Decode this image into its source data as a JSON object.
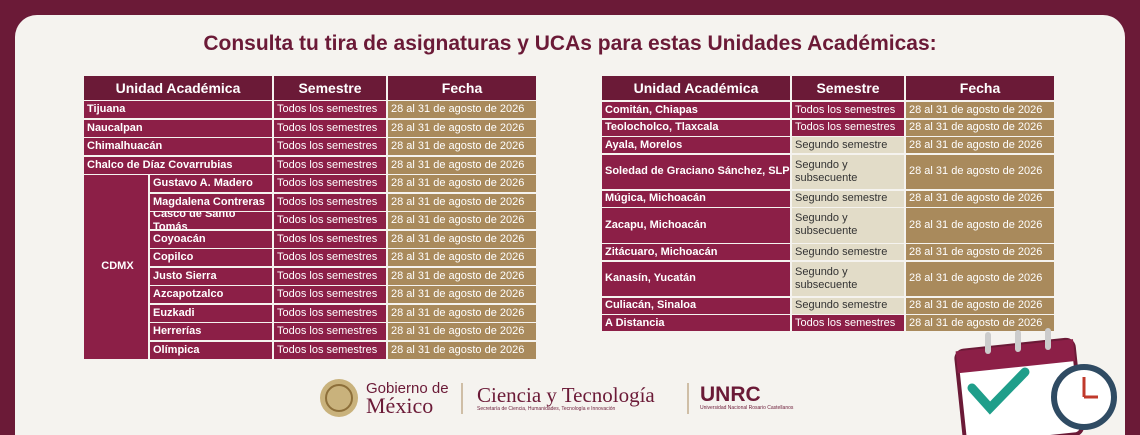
{
  "title": "Consulta tu tira de asignaturas y UCAs para estas Unidades Académicas:",
  "left_table": {
    "headers": [
      "Unidad Académica",
      "Semestre",
      "Fecha"
    ],
    "rows": [
      {
        "unidad": "Tijuana",
        "semestre": "Todos los semestres",
        "fecha": "28 al 31 de agosto de 2026"
      },
      {
        "unidad": "Naucalpan",
        "semestre": "Todos los semestres",
        "fecha": "28 al 31 de agosto de 2026"
      },
      {
        "unidad": "Chimalhuacán",
        "semestre": "Todos los semestres",
        "fecha": "28 al 31 de agosto de 2026"
      },
      {
        "unidad": "Chalco de Díaz Covarrubias",
        "semestre": "Todos los semestres",
        "fecha": "28 al 31 de agosto de 2026"
      }
    ],
    "group": {
      "label": "CDMX",
      "rows": [
        {
          "campus": "Gustavo A. Madero",
          "semestre": "Todos los semestres",
          "fecha": "28 al 31 de agosto de 2026"
        },
        {
          "campus": "Magdalena Contreras",
          "semestre": "Todos los semestres",
          "fecha": "28 al 31 de agosto de 2026"
        },
        {
          "campus": "Casco de Santo Tomás",
          "semestre": "Todos los semestres",
          "fecha": "28 al 31 de agosto de 2026"
        },
        {
          "campus": "Coyoacán",
          "semestre": "Todos los semestres",
          "fecha": "28 al 31 de agosto de 2026"
        },
        {
          "campus": "Copilco",
          "semestre": "Todos los semestres",
          "fecha": "28 al 31 de agosto de 2026"
        },
        {
          "campus": "Justo Sierra",
          "semestre": "Todos los semestres",
          "fecha": "28 al 31 de agosto de 2026"
        },
        {
          "campus": "Azcapotzalco",
          "semestre": "Todos los semestres",
          "fecha": "28 al 31 de agosto de 2026"
        },
        {
          "campus": "Euzkadi",
          "semestre": "Todos los semestres",
          "fecha": "28 al 31 de agosto de 2026"
        },
        {
          "campus": "Herrerías",
          "semestre": "Todos los semestres",
          "fecha": "28 al 31 de agosto de 2026"
        },
        {
          "campus": "Olímpica",
          "semestre": "Todos los semestres",
          "fecha": "28 al 31 de agosto de 2026"
        }
      ]
    }
  },
  "right_table": {
    "headers": [
      "Unidad Académica",
      "Semestre",
      "Fecha"
    ],
    "rows": [
      {
        "unidad": "Comitán, Chiapas",
        "semestre": "Todos los semestres",
        "fecha": "28 al 31 de agosto de 2026"
      },
      {
        "unidad": "Teolocholco, Tlaxcala",
        "semestre": "Todos los semestres",
        "fecha": "28 al 31 de agosto de 2026"
      },
      {
        "unidad": "Ayala, Morelos",
        "semestre": "Segundo semestre",
        "fecha": "28 al 31 de agosto de 2026"
      },
      {
        "unidad": "Soledad de Graciano Sánchez, SLP",
        "semestre": "Segundo y subsecuente",
        "fecha": "28 al 31 de agosto de 2026"
      },
      {
        "unidad": "Múgica, Michoacán",
        "semestre": "Segundo semestre",
        "fecha": "28 al 31 de agosto de 2026"
      },
      {
        "unidad": "Zacapu, Michoacán",
        "semestre": "Segundo y subsecuente",
        "fecha": "28 al 31 de agosto de 2026"
      },
      {
        "unidad": "Zitácuaro, Michoacán",
        "semestre": "Segundo semestre",
        "fecha": "28 al 31 de agosto de 2026"
      },
      {
        "unidad": "Kanasín, Yucatán",
        "semestre": "Segundo y subsecuente",
        "fecha": "28 al 31 de agosto de 2026"
      },
      {
        "unidad": "Culiacán, Sinaloa",
        "semestre": "Segundo semestre",
        "fecha": "28 al 31 de agosto de 2026"
      },
      {
        "unidad": "A Distancia",
        "semestre": "Todos los semestres",
        "fecha": "28 al 31 de agosto de 2026"
      }
    ]
  },
  "footer": {
    "gobierno_1": "Gobierno de",
    "gobierno_2": "México",
    "ciencia": "Ciencia y Tecnología",
    "ciencia_sub": "Secretaría de Ciencia, Humanidades, Tecnología e Innovación",
    "unrc": "UNRC",
    "unrc_sub": "Universidad Nacional Rosario Castellanos"
  }
}
